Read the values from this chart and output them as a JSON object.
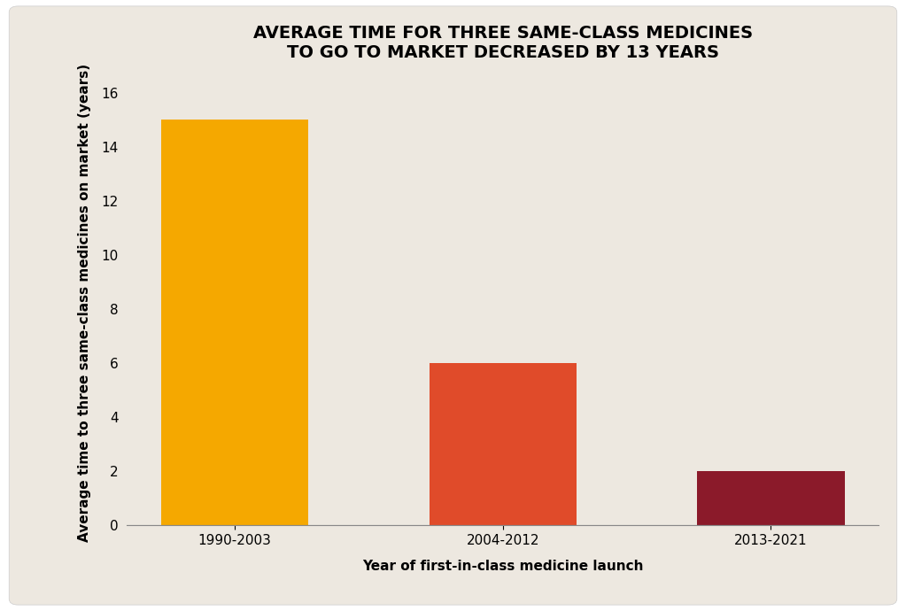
{
  "categories": [
    "1990-2003",
    "2004-2012",
    "2013-2021"
  ],
  "values": [
    15,
    6,
    2
  ],
  "bar_colors": [
    "#F5A800",
    "#E04B2A",
    "#8B1A2A"
  ],
  "title_line1": "AVERAGE TIME FOR THREE SAME-CLASS MEDICINES",
  "title_line2": "TO GO TO MARKET DECREASED BY 13 YEARS",
  "xlabel": "Year of first-in-class medicine launch",
  "ylabel": "Average time to three same-class medicines on market (years)",
  "ylim": [
    0,
    16.5
  ],
  "yticks": [
    0,
    2,
    4,
    6,
    8,
    10,
    12,
    14,
    16
  ],
  "background_color": "#EDE8E0",
  "outer_background": "#FFFFFF",
  "title_fontsize": 14,
  "axis_label_fontsize": 11,
  "tick_fontsize": 11,
  "bar_width": 0.55
}
